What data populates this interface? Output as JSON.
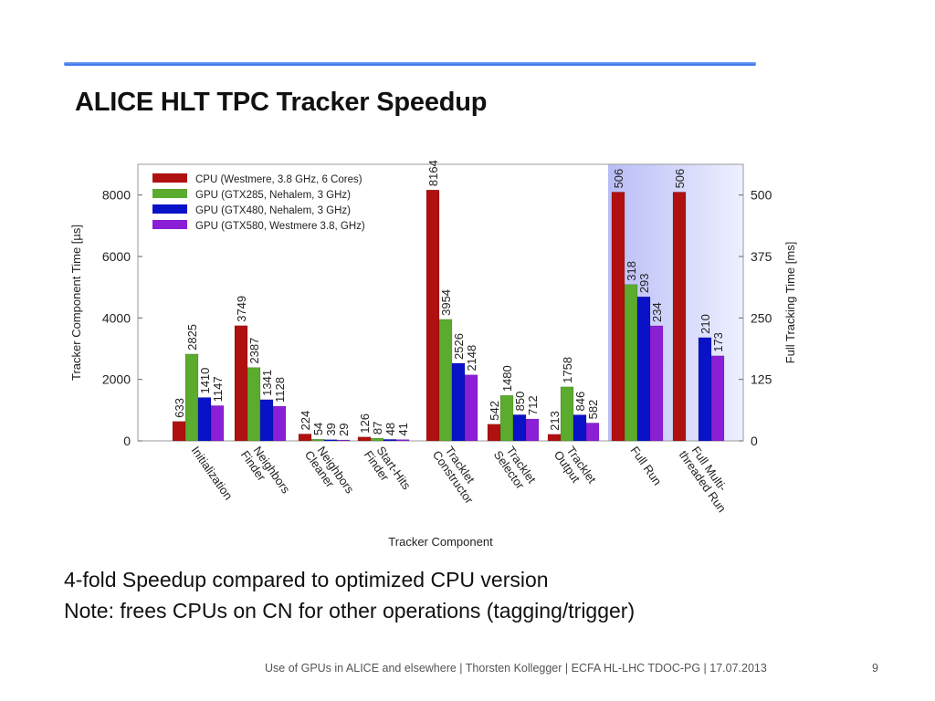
{
  "slide": {
    "title": "ALICE HLT TPC Tracker Speedup",
    "bullets": [
      "4-fold Speedup compared to optimized CPU version",
      "Note: frees CPUs on CN for other operations (tagging/trigger)"
    ],
    "footer": "Use of GPUs in ALICE and elsewhere | Thorsten Kollegger | ECFA HL-LHC TDOC-PG | 17.07.2013",
    "page_number": "9"
  },
  "chart_data": {
    "type": "bar",
    "xlabel": "Tracker Component",
    "ylabel": "Tracker Component Time [µs]",
    "ylabel_right": "Full Tracking Time [ms]",
    "ylim": [
      0,
      9000
    ],
    "yticks": [
      0,
      2000,
      4000,
      6000,
      8000
    ],
    "ylim_right": [
      0,
      562.5
    ],
    "yticks_right": [
      0,
      125,
      250,
      375,
      500
    ],
    "legend_placement": "top-left",
    "grid": false,
    "categories": [
      "Initialization",
      "Neighbors Finder",
      "Neighbors Cleaner",
      "Start-Hits Finder",
      "Tracklet Constructor",
      "Tracklet Selector",
      "Tracklet Output",
      "Full Run",
      "Full Multi-threaded Run"
    ],
    "category_lines": [
      [
        "Initialization"
      ],
      [
        "Neighbors",
        "Finder"
      ],
      [
        "Neighbors",
        "Cleaner"
      ],
      [
        "Start-Hits",
        "Finder"
      ],
      [
        "Tracklet",
        "Constructor"
      ],
      [
        "Tracklet",
        "Selector"
      ],
      [
        "Tracklet",
        "Output"
      ],
      [
        "Full Run"
      ],
      [
        "Full Multi-",
        "threaded Run"
      ]
    ],
    "right_axis_categories": [
      "Full Run",
      "Full Multi-threaded Run"
    ],
    "series": [
      {
        "name": "CPU (Westmere, 3.8 GHz, 6 Cores)",
        "color": "#b01010",
        "values": [
          633,
          3749,
          224,
          126,
          8164,
          542,
          213,
          506,
          506
        ]
      },
      {
        "name": "GPU (GTX285, Nehalem, 3 GHz)",
        "color": "#5aab2e",
        "values": [
          2825,
          2387,
          54,
          87,
          3954,
          1480,
          1758,
          318,
          null
        ]
      },
      {
        "name": "GPU (GTX480, Nehalem, 3 GHz)",
        "color": "#0a12c8",
        "values": [
          1410,
          1341,
          39,
          48,
          2526,
          850,
          846,
          293,
          210
        ]
      },
      {
        "name": "GPU (GTX580, Westmere 3.8, GHz)",
        "color": "#8a1fd6",
        "values": [
          1147,
          1128,
          29,
          41,
          2148,
          712,
          582,
          234,
          173
        ]
      }
    ]
  }
}
